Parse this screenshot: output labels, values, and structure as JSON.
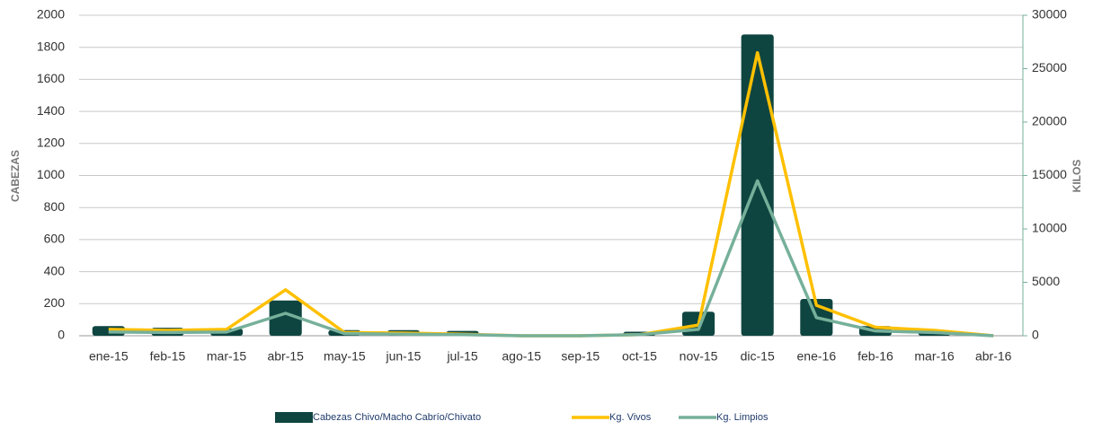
{
  "chart_data": {
    "type": "bar",
    "categories": [
      "ene-15",
      "feb-15",
      "mar-15",
      "abr-15",
      "may-15",
      "jun-15",
      "jul-15",
      "ago-15",
      "sep-15",
      "oct-15",
      "nov-15",
      "dic-15",
      "ene-16",
      "feb-16",
      "mar-16",
      "abr-16"
    ],
    "series": [
      {
        "name": "Cabezas Chivo/Macho Cabrío/Chivato",
        "type": "bar",
        "color": "#0f4540",
        "values": [
          60,
          50,
          45,
          220,
          35,
          35,
          30,
          0,
          0,
          25,
          150,
          1880,
          230,
          60,
          35,
          0
        ]
      },
      {
        "name": "Kg. Vivos",
        "type": "line",
        "axis": "y2",
        "color": "#ffc000",
        "values": [
          600,
          500,
          600,
          4300,
          300,
          250,
          150,
          0,
          0,
          100,
          1000,
          26500,
          2850,
          800,
          500,
          0
        ]
      },
      {
        "name": "Kg. Limpios",
        "type": "line",
        "axis": "y2",
        "color": "#76b09a",
        "values": [
          350,
          300,
          350,
          2100,
          200,
          150,
          100,
          0,
          0,
          100,
          600,
          14500,
          1700,
          450,
          300,
          0
        ]
      }
    ],
    "ylabel": "CABEZAS",
    "y2label": "KILOS",
    "ylim": [
      0,
      2000
    ],
    "yticks": [
      0,
      200,
      400,
      600,
      800,
      1000,
      1200,
      1400,
      1600,
      1800,
      2000
    ],
    "y2lim": [
      0,
      30000
    ],
    "y2ticks": [
      0,
      5000,
      10000,
      15000,
      20000,
      25000,
      30000
    ],
    "grid": true,
    "legend": "bottom"
  }
}
